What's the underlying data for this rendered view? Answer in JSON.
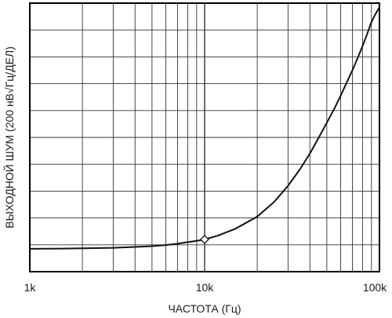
{
  "chart_data": {
    "type": "line",
    "xlabel": "ЧАСТОТА (Гц)",
    "ylabel": "ВЫХОДНОЙ ШУМ (200 нВ√Гц/ДЕЛ)",
    "x_scale": "log",
    "xlim": [
      1000,
      100000
    ],
    "x_tick_labels": [
      "1k",
      "10k",
      "100k"
    ],
    "ylim": [
      0,
      10
    ],
    "y_divisions": 10,
    "grid": true,
    "series": [
      {
        "x": [
          1000,
          1500,
          2000,
          3000,
          4000,
          5000,
          6000,
          7000,
          8000,
          9000,
          10000,
          12000,
          15000,
          20000,
          25000,
          30000,
          35000,
          40000,
          45000,
          50000,
          55000,
          60000,
          65000,
          70000,
          75000,
          80000,
          85000,
          90000,
          95000,
          100000
        ],
        "y": [
          0.85,
          0.86,
          0.87,
          0.89,
          0.92,
          0.95,
          0.99,
          1.04,
          1.1,
          1.15,
          1.2,
          1.35,
          1.6,
          2.05,
          2.6,
          3.2,
          3.8,
          4.4,
          5.0,
          5.55,
          6.05,
          6.55,
          7.05,
          7.5,
          7.95,
          8.4,
          8.85,
          9.3,
          9.6,
          9.85
        ]
      }
    ],
    "markers": [
      {
        "x": 10000,
        "y": 1.2,
        "shape": "diamond"
      }
    ],
    "colors": {
      "line": "#111111",
      "grid": "#333333",
      "frame": "#000000"
    }
  }
}
